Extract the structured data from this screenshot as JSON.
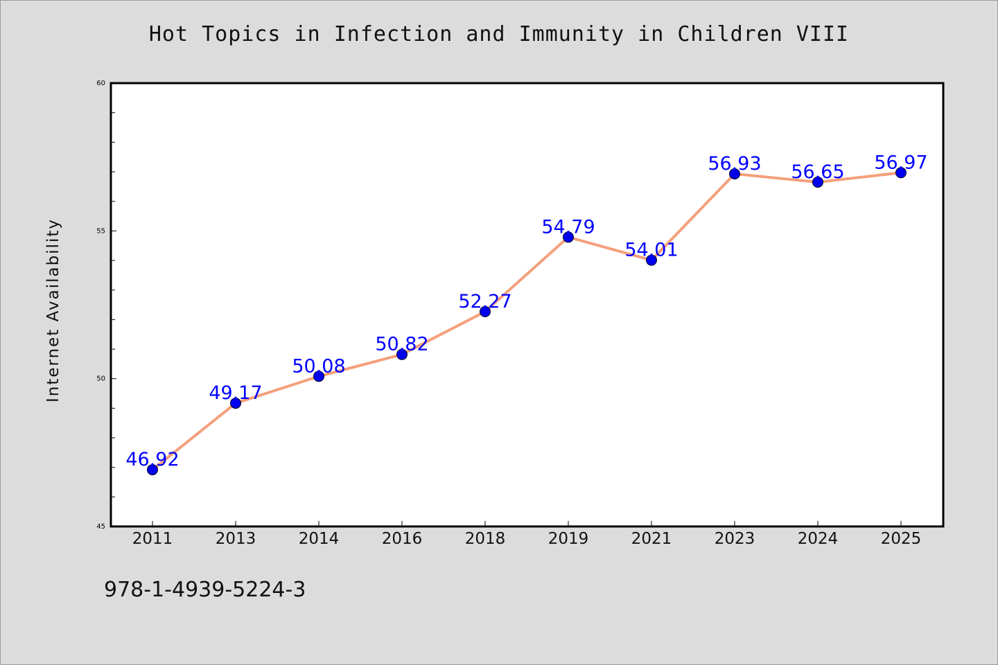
{
  "chart_data": {
    "type": "line",
    "title": "Hot Topics in Infection and Immunity in Children VIII",
    "xlabel": "",
    "ylabel": "Internet Availability",
    "categories": [
      "2011",
      "2013",
      "2014",
      "2016",
      "2018",
      "2019",
      "2021",
      "2023",
      "2024",
      "2025"
    ],
    "series": [
      {
        "values": [
          46.92,
          49.17,
          50.08,
          50.82,
          52.27,
          54.79,
          54.01,
          56.93,
          56.65,
          56.97
        ],
        "labels": [
          "46.92",
          "49.17",
          "50.08",
          "50.82",
          "52.27",
          "54.79",
          "54.01",
          "56.93",
          "56.65",
          "56.97"
        ]
      }
    ],
    "ylim": [
      45,
      60
    ],
    "yticks": [
      45,
      50,
      55,
      60
    ],
    "ytick_labels": [
      "45",
      "50",
      "55",
      "60"
    ],
    "grid": false,
    "legend": "none",
    "colors": {
      "line": "#f4a07c",
      "marker": "#0000ee",
      "label": "#0000ff",
      "background": "#dcdcdc",
      "plot_background": "#ffffff"
    }
  },
  "footer": {
    "text": "978-1-4939-5224-3"
  }
}
